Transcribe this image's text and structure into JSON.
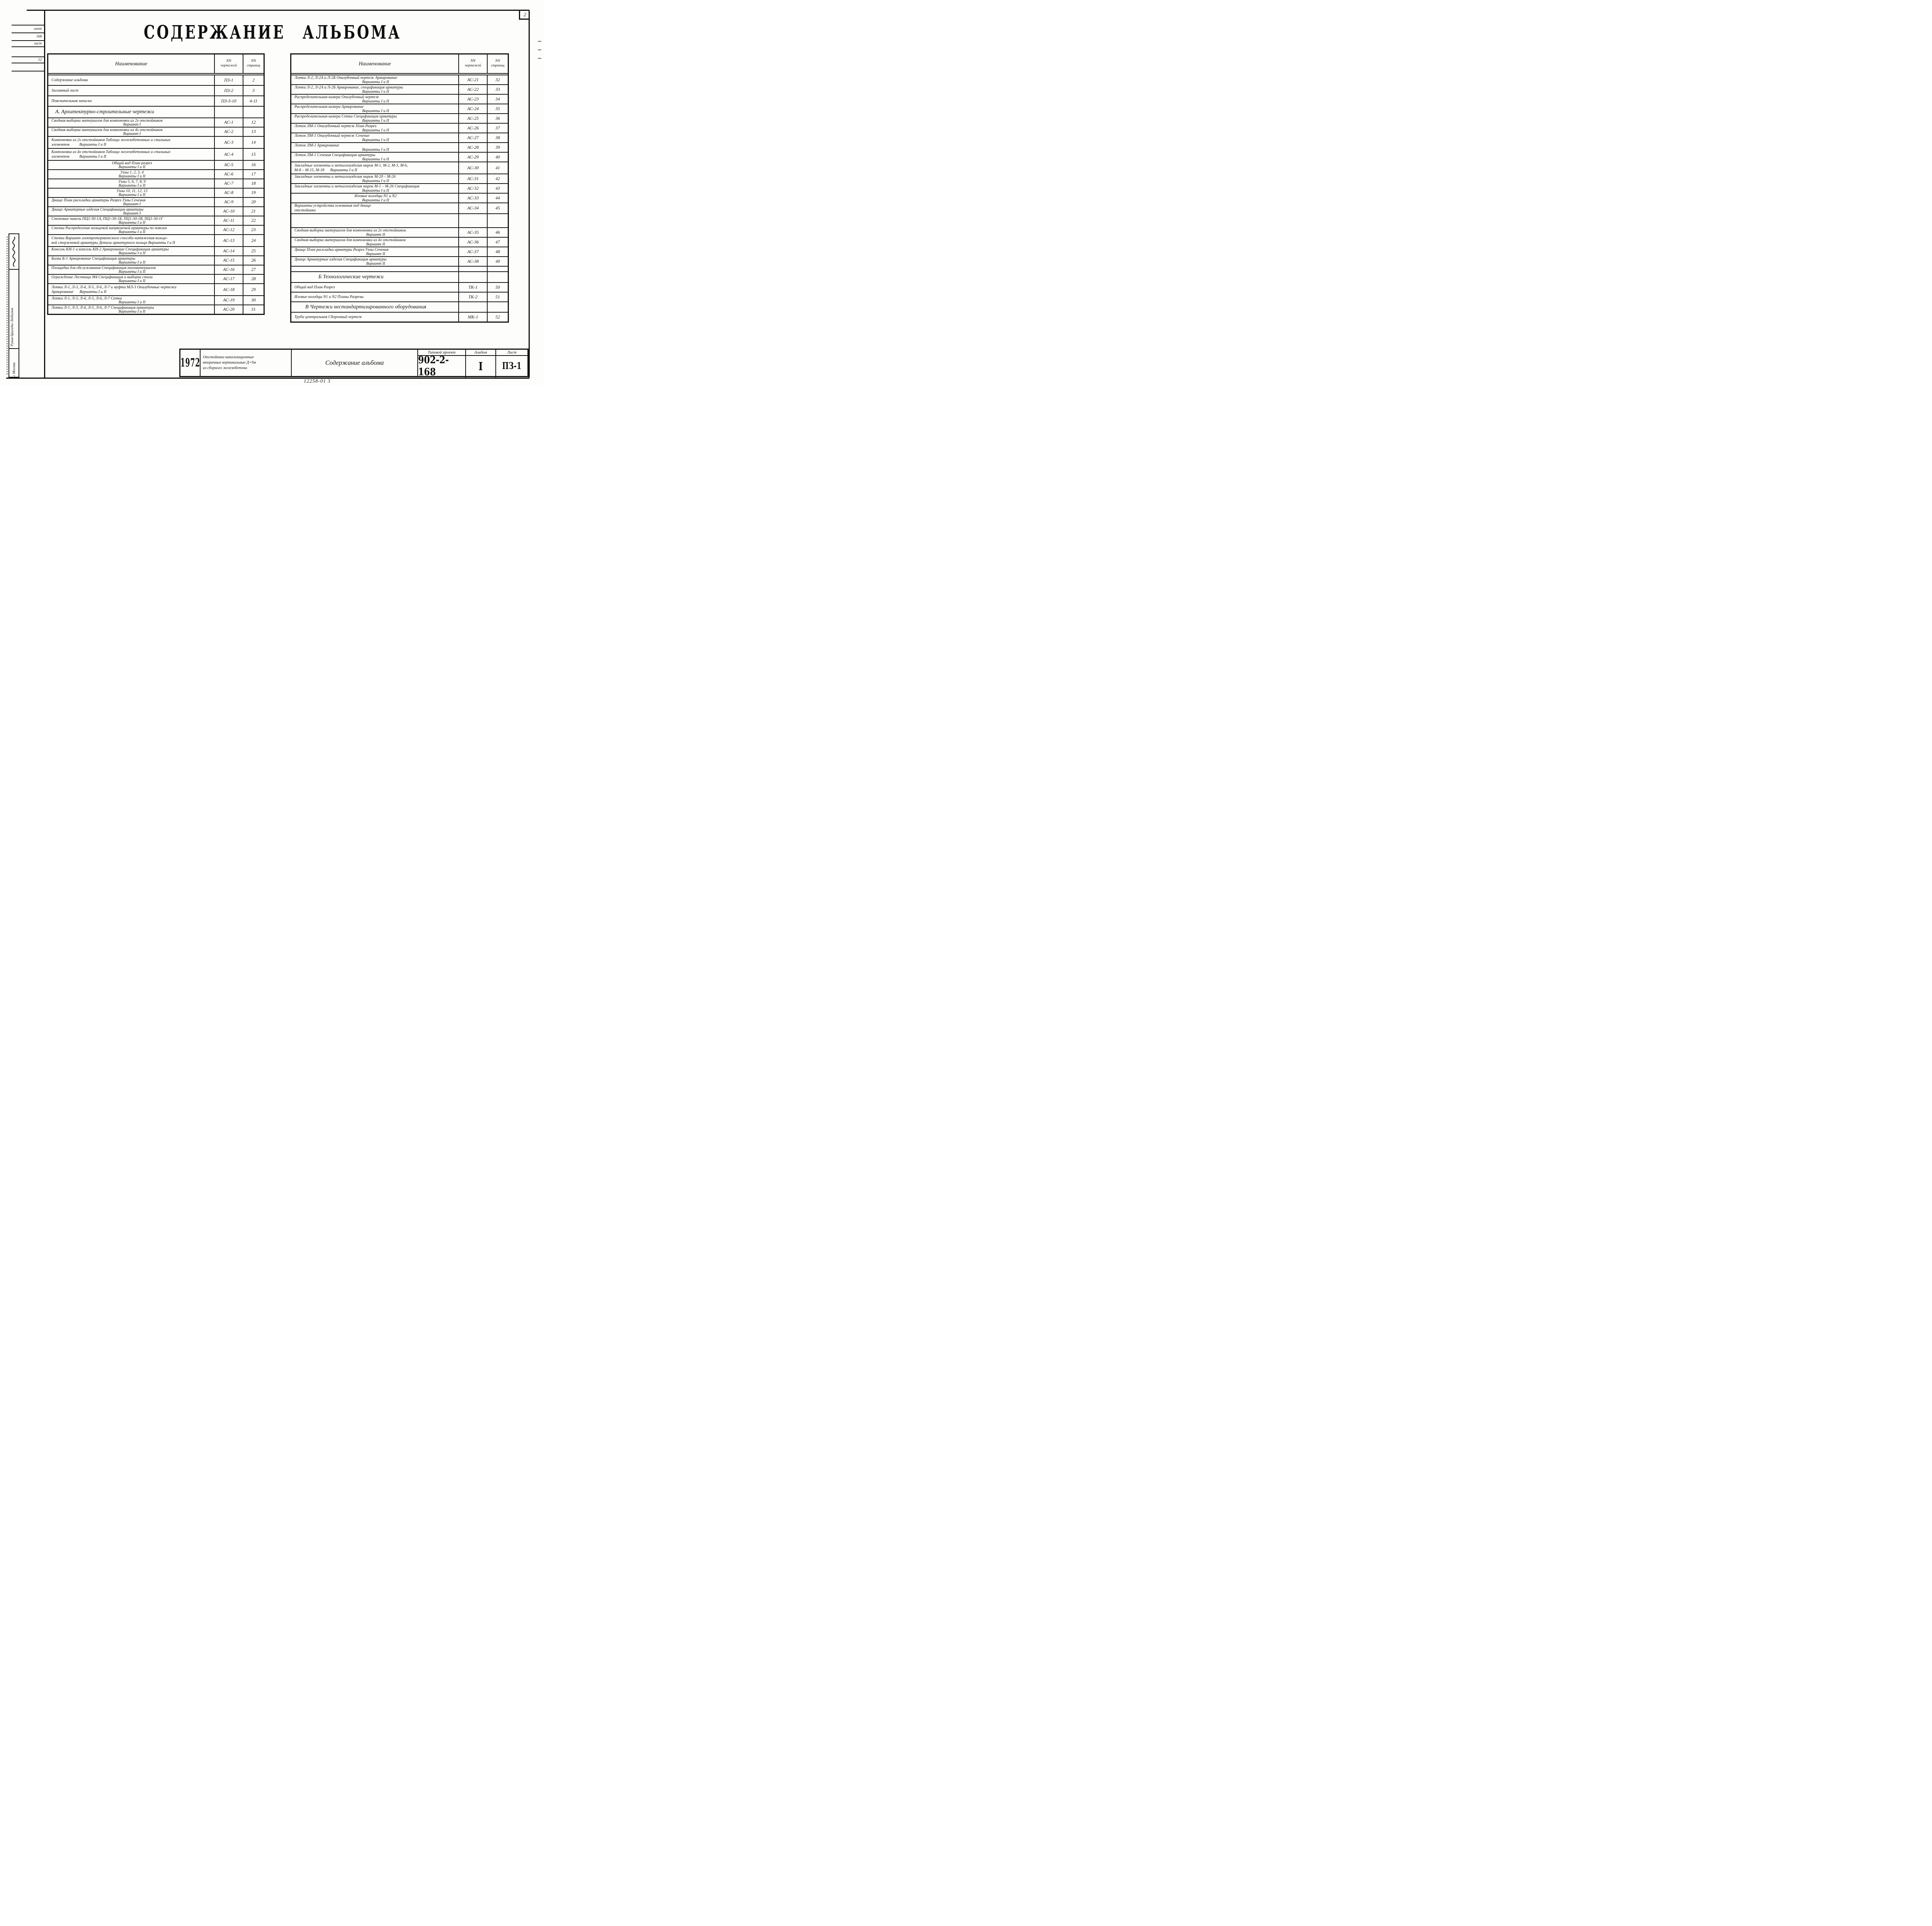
{
  "page": {
    "title": "СОДЕРЖАНИЕ АЛЬБОМА",
    "sheet_corner_number": "2",
    "bottom_stamp": "12258-01  3"
  },
  "left_margin": {
    "cut_cells": [
      "оект",
      "168",
      "лист",
      "",
      "12",
      ""
    ],
    "brigade_label": "Руков бригады  Любимов",
    "city_label": "г Москва"
  },
  "columns": {
    "name": "Наименование",
    "num_top": "NN",
    "num_bottom": "чертежей",
    "pg_top": "NN",
    "pg_bottom": "страниц"
  },
  "left_table_rows": [
    {
      "type": "entry",
      "h": 25,
      "lines": [
        {
          "t": "Содержание альбома",
          "a": "l"
        }
      ],
      "num": "ПЗ-1",
      "page": "2"
    },
    {
      "type": "entry",
      "h": 25,
      "lines": [
        {
          "t": "Заглавный  лист",
          "a": "l"
        }
      ],
      "num": "ПЗ-2",
      "page": "3"
    },
    {
      "type": "entry",
      "h": 25,
      "lines": [
        {
          "t": "Пояснительная  записка",
          "a": "l"
        }
      ],
      "num": "ПЗ-3-10",
      "page": "4-11"
    },
    {
      "type": "section",
      "h": 28,
      "pad": 10,
      "text": "А. Архитектурно-строительные чертежи"
    },
    {
      "type": "entry",
      "h": 22,
      "lines": [
        {
          "t": "Сводная выборка материалов для компоновки из 2х отстойников",
          "a": "l"
        },
        {
          "t": "Вариант I",
          "a": "c"
        }
      ],
      "num": "АС-1",
      "page": "12"
    },
    {
      "type": "entry",
      "h": 22,
      "lines": [
        {
          "t": "Сводная выборка материалов для компоновки из 4х отстойников",
          "a": "l"
        },
        {
          "t": "Вариант I",
          "a": "c"
        }
      ],
      "num": "АС-2",
      "page": "13"
    },
    {
      "type": "entry",
      "h": 29,
      "lines": [
        {
          "t": "Компоновка из 2х отстойников Таблица железобетонных и стальных",
          "a": "l"
        },
        {
          "t": "элементов          Варианты I и II",
          "a": "l"
        }
      ],
      "num": "АС-3",
      "page": "14"
    },
    {
      "type": "entry",
      "h": 29,
      "lines": [
        {
          "t": "Компоновка из 4х отстойников Таблица железобетонных и стальных",
          "a": "l"
        },
        {
          "t": "элементов          Варианты I и II",
          "a": "l"
        }
      ],
      "num": "АС-4",
      "page": "15"
    },
    {
      "type": "entry",
      "h": 22,
      "lines": [
        {
          "t": "Общий вид План разрез",
          "a": "c"
        },
        {
          "t": "Варианты I и II",
          "a": "c"
        }
      ],
      "num": "АС-5",
      "page": "16"
    },
    {
      "type": "entry",
      "h": 22,
      "lines": [
        {
          "t": "Узлы  1, 2, 3, 4",
          "a": "c"
        },
        {
          "t": "Варианты I и II",
          "a": "c"
        }
      ],
      "num": "АС-6",
      "page": "17"
    },
    {
      "type": "entry",
      "h": 22,
      "lines": [
        {
          "t": "Узлы  5, 6, 7, 8, 9",
          "a": "c"
        },
        {
          "t": "Варианты I и II",
          "a": "c"
        }
      ],
      "num": "АС-7",
      "page": "18"
    },
    {
      "type": "entry",
      "h": 22,
      "lines": [
        {
          "t": "Узлы  10, 11, 12, 13",
          "a": "c"
        },
        {
          "t": "Варианты I и II",
          "a": "c"
        }
      ],
      "num": "АС-8",
      "page": "19"
    },
    {
      "type": "entry",
      "h": 22,
      "lines": [
        {
          "t": "Днище  План раскладки арматуры Разрез Узлы Сечения",
          "a": "l"
        },
        {
          "t": "Вариант I",
          "a": "c"
        }
      ],
      "num": "АС-9",
      "page": "20"
    },
    {
      "type": "entry",
      "h": 22,
      "lines": [
        {
          "t": "Днище  Арматурные изделия Спецификация арматуры",
          "a": "l"
        },
        {
          "t": "Вариант I",
          "a": "c"
        }
      ],
      "num": "АС-10",
      "page": "21"
    },
    {
      "type": "entry",
      "h": 22,
      "lines": [
        {
          "t": "Стеновые панели ПЦ1-30-1А, ПЦ1-30-1Б, ПЦ1-30-1В, ПЦ1-30-1Г",
          "a": "l"
        },
        {
          "t": "Варианты I и II",
          "a": "c"
        }
      ],
      "num": "АС-11",
      "page": "22"
    },
    {
      "type": "entry",
      "h": 22,
      "lines": [
        {
          "t": "Стенка Распределение кольцевой напрягаемой арматуры по поясам",
          "a": "l"
        },
        {
          "t": "Варианты I и II",
          "a": "c"
        }
      ],
      "num": "АС-12",
      "page": "23"
    },
    {
      "type": "entry",
      "h": 29,
      "lines": [
        {
          "t": "Стенка Вариант электротермического способа натяжения кольце-",
          "a": "l"
        },
        {
          "t": "вой стержневой арматуры Детали арматурного кольца Варианты I и II",
          "a": "l"
        }
      ],
      "num": "АС-13",
      "page": "24"
    },
    {
      "type": "entry",
      "h": 22,
      "lines": [
        {
          "t": "Консоль КН-1 и консоль КН-2 Армирование Спецификация арматуры",
          "a": "l"
        },
        {
          "t": "Варианты I и II",
          "a": "c"
        }
      ],
      "num": "АС-14",
      "page": "25"
    },
    {
      "type": "entry",
      "h": 22,
      "lines": [
        {
          "t": "Балка  Б-1  Армирование Спецификация арматуры",
          "a": "l"
        },
        {
          "t": "Варианты I и II",
          "a": "c"
        }
      ],
      "num": "АС-15",
      "page": "26"
    },
    {
      "type": "entry",
      "h": 22,
      "lines": [
        {
          "t": "Площадка для  обслуживания Спецификация пиломатериалов",
          "a": "l"
        },
        {
          "t": "Варианты I и II",
          "a": "c"
        }
      ],
      "num": "АС-16",
      "page": "27"
    },
    {
      "type": "entry",
      "h": 22,
      "lines": [
        {
          "t": "Ограждение  Лестница М4 Спецификация и выборка стали",
          "a": "l"
        },
        {
          "t": "Варианты I и II",
          "a": "c"
        }
      ],
      "num": "АС-17",
      "page": "28"
    },
    {
      "type": "entry",
      "h": 29,
      "lines": [
        {
          "t": "Лотки Л-1, Л-3, Л-4, Л-5, Л-6, Л-7 и муфта МЛ-3 Опалубочные чертежи",
          "a": "l"
        },
        {
          "t": "Армирование      Варианты I и II",
          "a": "l"
        }
      ],
      "num": "АС-18",
      "page": "29"
    },
    {
      "type": "entry",
      "h": 22,
      "lines": [
        {
          "t": "Лотки  Л-1, Л-3, Л-4, Л-5, Л-6, Л-7  Сетки",
          "a": "l"
        },
        {
          "t": "Варианты I и II",
          "a": "c"
        }
      ],
      "num": "АС-19",
      "page": "30"
    },
    {
      "type": "entry",
      "h": 22,
      "lines": [
        {
          "t": "Лотки  Л-1, Л-3, Л-4, Л-5, Л-6, Л-7  Спецификация  арматуры",
          "a": "l"
        },
        {
          "t": "Варианты I и II",
          "a": "c"
        }
      ],
      "num": "АС-20",
      "page": "31"
    }
  ],
  "right_table_rows": [
    {
      "type": "entry",
      "h": 23,
      "lines": [
        {
          "t": "Лотки Л-2, Л-2А и Л-2Б Опалубочный чертеж Армирование",
          "a": "l"
        },
        {
          "t": "Варианты I и II",
          "a": "c"
        }
      ],
      "num": "АС-21",
      "page": "32"
    },
    {
      "type": "entry",
      "h": 23,
      "lines": [
        {
          "t": "Лотки Л-2, Л-2А и Л-2Б Армирование, спецификация арматуры",
          "a": "l"
        },
        {
          "t": "Варианты I и II",
          "a": "c"
        }
      ],
      "num": "АС-22",
      "page": "33"
    },
    {
      "type": "entry",
      "h": 23,
      "lines": [
        {
          "t": "Распределительная камера Опалубочный чертеж",
          "a": "l"
        },
        {
          "t": "Варианты I и II",
          "a": "c"
        }
      ],
      "num": "АС-23",
      "page": "34"
    },
    {
      "type": "entry",
      "h": 23,
      "lines": [
        {
          "t": "Распределительная  камера  Армирование",
          "a": "l"
        },
        {
          "t": "Варианты I и II",
          "a": "c"
        }
      ],
      "num": "АС-24",
      "page": "35"
    },
    {
      "type": "entry",
      "h": 23,
      "lines": [
        {
          "t": "Распределительная  камера Сетки Спецификация арматуры",
          "a": "l"
        },
        {
          "t": "Варианты I и II",
          "a": "c"
        }
      ],
      "num": "АС-25",
      "page": "36"
    },
    {
      "type": "entry",
      "h": 23,
      "lines": [
        {
          "t": "Лоток  ЛМ-1  Опалубочный чертеж План Разрез",
          "a": "l"
        },
        {
          "t": "Варианты I и II",
          "a": "c"
        }
      ],
      "num": "АС-26",
      "page": "37"
    },
    {
      "type": "entry",
      "h": 23,
      "lines": [
        {
          "t": "Лоток  ЛМ-1  Опалубочный чертеж  Сечение",
          "a": "l"
        },
        {
          "t": "Варианты I и II",
          "a": "c"
        }
      ],
      "num": "АС-27",
      "page": "38"
    },
    {
      "type": "entry",
      "h": 23,
      "lines": [
        {
          "t": "Лоток   ЛМ-1   Армирование",
          "a": "l"
        },
        {
          "t": "Варианты I и II",
          "a": "c"
        }
      ],
      "num": "АС-28",
      "page": "39"
    },
    {
      "type": "entry",
      "h": 23,
      "lines": [
        {
          "t": "Лоток   ЛМ-1   Сечения  Спецификация  арматуры",
          "a": "l"
        },
        {
          "t": "Варианты I и II",
          "a": "c"
        }
      ],
      "num": "АС-29",
      "page": "40"
    },
    {
      "type": "entry",
      "h": 29,
      "lines": [
        {
          "t": "Закладные элементы и металлоизделия марок  М-1, М-2, М-3, М-6,",
          "a": "l"
        },
        {
          "t": "М-8 – М-15, М-18      Варианты I и II",
          "a": "l"
        }
      ],
      "num": "АС-30",
      "page": "41"
    },
    {
      "type": "entry",
      "h": 23,
      "lines": [
        {
          "t": "Закладные элементы и металлоизделия марок  М-20 – М-26",
          "a": "l"
        },
        {
          "t": "Варианты I и II",
          "a": "c"
        }
      ],
      "num": "АС-31",
      "page": "42"
    },
    {
      "type": "entry",
      "h": 23,
      "lines": [
        {
          "t": "Закладные элементы и металлоизделия марок М-1 – М-26 Спецификация",
          "a": "l"
        },
        {
          "t": "Варианты I и II",
          "a": "c"
        }
      ],
      "num": "АС-32",
      "page": "43"
    },
    {
      "type": "entry",
      "h": 23,
      "lines": [
        {
          "t": "Иловые  колодцы  N1  и N2",
          "a": "c"
        },
        {
          "t": "Варианты I и II",
          "a": "c"
        }
      ],
      "num": "АС-33",
      "page": "44"
    },
    {
      "type": "entry",
      "h": 26,
      "lines": [
        {
          "t": "Варианты устройства  основания  под  днище",
          "a": "l"
        },
        {
          "t": "отстойника",
          "a": "l"
        }
      ],
      "num": "АС-34",
      "page": "45"
    },
    {
      "type": "gap",
      "h": 34
    },
    {
      "type": "entry",
      "h": 23,
      "lines": [
        {
          "t": "Сводная выборка материалов для компоновки из 2х отстойников.",
          "a": "l"
        },
        {
          "t": "Вариант II",
          "a": "c"
        }
      ],
      "num": "АС-35",
      "page": "46"
    },
    {
      "type": "entry",
      "h": 23,
      "lines": [
        {
          "t": "Сводная выборка материалов для компоновки из 4х отстойников",
          "a": "l"
        },
        {
          "t": "Вариант II",
          "a": "c"
        }
      ],
      "num": "АС-36",
      "page": "47"
    },
    {
      "type": "entry",
      "h": 23,
      "lines": [
        {
          "t": "Днище План раскладки  арматуры  Разрез  Узлы  Сечения",
          "a": "l"
        },
        {
          "t": "Вариант II",
          "a": "c"
        }
      ],
      "num": "АС-37",
      "page": "48"
    },
    {
      "type": "entry",
      "h": 23,
      "lines": [
        {
          "t": "Днище  Арматурные  изделия  Спецификация  арматуры",
          "a": "l"
        },
        {
          "t": "Вариант II",
          "a": "c"
        }
      ],
      "num": "АС-38",
      "page": "49"
    },
    {
      "type": "gap",
      "h": 12
    },
    {
      "type": "section",
      "h": 26,
      "pad": 62,
      "text": "Б Технологические чертежи"
    },
    {
      "type": "entry",
      "h": 23,
      "lines": [
        {
          "t": "Общий  вид  План  Разрез",
          "a": "l"
        }
      ],
      "num": "ТК-1",
      "page": "50"
    },
    {
      "type": "entry",
      "h": 23,
      "lines": [
        {
          "t": "Иловые колодцы  N1 и N2  Планы  Разрезы",
          "a": "l"
        }
      ],
      "num": "ТК-2",
      "page": "51"
    },
    {
      "type": "section",
      "h": 25,
      "pad": 28,
      "text": "В Чертежи нестандартизированного оборудования"
    },
    {
      "type": "entry",
      "h": 23,
      "lines": [
        {
          "t": "Труба центральная  Сборочный  чертеж",
          "a": "l"
        }
      ],
      "num": "МК-1",
      "page": "52"
    }
  ],
  "title_block": {
    "year": "1972",
    "project_desc_lines": [
      "Отстойники канализационные",
      "вторичные вертикальные Д=9м",
      "из сборного железобетона"
    ],
    "doc_title": "Содержание альбома",
    "project_label": "Типовой проект",
    "project_value": "902-2-168",
    "album_label": "Альбом",
    "album_value": "I",
    "sheet_label": "Лист",
    "sheet_value": "ПЗ-1"
  }
}
